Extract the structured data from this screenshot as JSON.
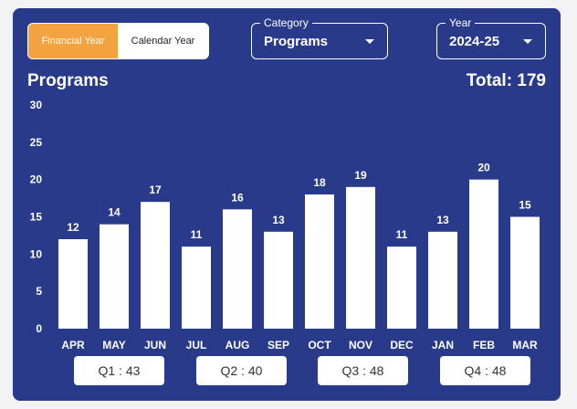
{
  "toggle": {
    "financial_label": "Financial Year",
    "calendar_label": "Calendar Year"
  },
  "category": {
    "legend": "Category",
    "value": "Programs"
  },
  "year": {
    "legend": "Year",
    "value": "2024-25"
  },
  "header": {
    "title": "Programs",
    "total": "Total: 179"
  },
  "colors": {
    "card_background": "#2a3a8a",
    "active_toggle": "#f3a33f",
    "bar": "#ffffff",
    "text": "#ffffff"
  },
  "chart_data": {
    "type": "bar",
    "title": "",
    "xlabel": "",
    "ylabel": "",
    "categories": [
      "APR",
      "MAY",
      "JUN",
      "JUL",
      "AUG",
      "SEP",
      "OCT",
      "NOV",
      "DEC",
      "JAN",
      "FEB",
      "MAR"
    ],
    "values": [
      12,
      14,
      17,
      11,
      16,
      13,
      18,
      19,
      11,
      13,
      20,
      15
    ],
    "yticks": [
      "0",
      "5",
      "10",
      "15",
      "20",
      "25",
      "30"
    ],
    "ylim": [
      0,
      30
    ],
    "data_labels": true,
    "grid": false,
    "legend": "none"
  },
  "quarters": [
    "Q1 : 43",
    "Q2 : 40",
    "Q3 : 48",
    "Q4 : 48"
  ]
}
